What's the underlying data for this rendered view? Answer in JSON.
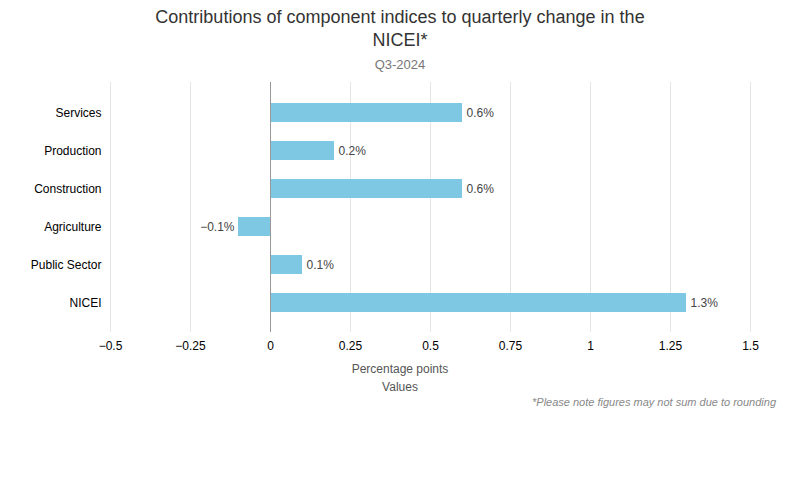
{
  "chart_data": {
    "type": "bar",
    "orientation": "horizontal",
    "title": "Contributions of component indices to quarterly change in the\nNICEI*",
    "subtitle": "Q3-2024",
    "categories": [
      "Services",
      "Production",
      "Construction",
      "Agriculture",
      "Public Sector",
      "NICEI"
    ],
    "values": [
      0.6,
      0.2,
      0.6,
      -0.1,
      0.1,
      1.3
    ],
    "value_labels": [
      "0.6%",
      "0.2%",
      "0.6%",
      "−0.1%",
      "0.1%",
      "1.3%"
    ],
    "data_labels": true,
    "color": "#7EC8E3",
    "xlabel": "Percentage points",
    "annotations": [
      "Values",
      "*Please note figures may not sum due to rounding"
    ],
    "xlim": [
      -0.5,
      1.5
    ],
    "xticks": [
      {
        "value": -0.5,
        "label": "−0.5"
      },
      {
        "value": -0.25,
        "label": "−0.25"
      },
      0,
      0.25,
      0.5,
      0.75,
      1,
      1.25,
      1.5
    ],
    "grid": true
  }
}
